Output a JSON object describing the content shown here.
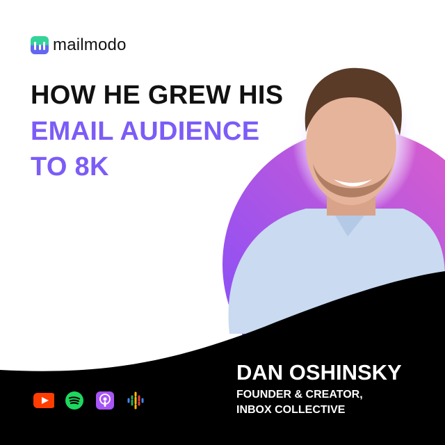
{
  "brand": {
    "name": "mailmodo"
  },
  "headline": {
    "line1": "HOW HE GREW HIS",
    "line2": "EMAIL AUDIENCE",
    "line3": "TO 8K"
  },
  "guest": {
    "name": "DAN OSHINSKY",
    "role_line1": "FOUNDER & CREATOR,",
    "role_line2": "INBOX COLLECTIVE"
  },
  "platforms": [
    "youtube-icon",
    "spotify-icon",
    "apple-podcasts-icon",
    "google-podcasts-icon"
  ],
  "colors": {
    "accent": "#7c5cf7",
    "circle_start": "#7c4dff",
    "circle_end": "#e25fc8",
    "footer": "#000000"
  }
}
